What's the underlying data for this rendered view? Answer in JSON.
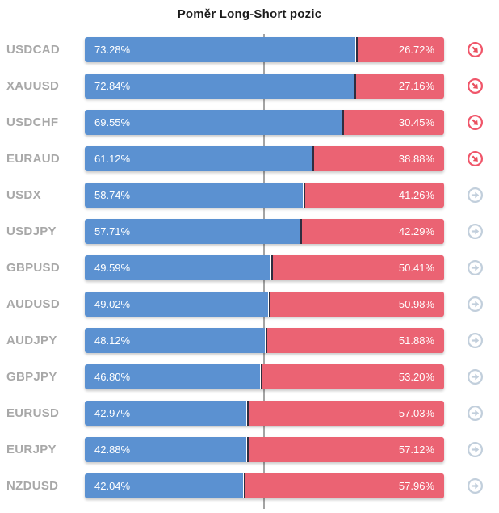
{
  "title": "Poměr Long-Short pozic",
  "colors": {
    "long_bar": "#5b91d1",
    "short_bar": "#eb6373",
    "junction_divider": "#2e2e40",
    "pair_label": "#a8a8a8",
    "title_text": "#1b1b1b",
    "center_line": "#a4a4a4",
    "sell_icon": "#f0566a",
    "neutral_icon": "#c2cfdc",
    "bar_text": "#ffffff"
  },
  "chart_data": {
    "type": "bar",
    "orientation": "horizontal",
    "stacked": true,
    "title": "Poměr Long-Short pozic",
    "xlim": [
      0,
      100
    ],
    "center_marker": 50,
    "legend": "none",
    "categories": [
      "USDCAD",
      "XAUUSD",
      "USDCHF",
      "EURAUD",
      "USDX",
      "USDJPY",
      "GBPUSD",
      "AUDUSD",
      "AUDJPY",
      "GBPJPY",
      "EURUSD",
      "EURJPY",
      "NZDUSD"
    ],
    "series": [
      {
        "name": "Long",
        "color": "#5b91d1",
        "values": [
          73.28,
          72.84,
          69.55,
          61.12,
          58.74,
          57.71,
          49.59,
          49.02,
          48.12,
          46.8,
          42.97,
          42.88,
          42.04
        ]
      },
      {
        "name": "Short",
        "color": "#eb6373",
        "values": [
          26.72,
          27.16,
          30.45,
          38.88,
          41.26,
          42.29,
          50.41,
          50.98,
          51.88,
          53.2,
          57.03,
          57.12,
          57.96
        ]
      }
    ],
    "rows": [
      {
        "pair": "USDCAD",
        "long": 73.28,
        "short": 26.72,
        "long_label": "73.28%",
        "short_label": "26.72%",
        "signal": "sell"
      },
      {
        "pair": "XAUUSD",
        "long": 72.84,
        "short": 27.16,
        "long_label": "72.84%",
        "short_label": "27.16%",
        "signal": "sell"
      },
      {
        "pair": "USDCHF",
        "long": 69.55,
        "short": 30.45,
        "long_label": "69.55%",
        "short_label": "30.45%",
        "signal": "sell"
      },
      {
        "pair": "EURAUD",
        "long": 61.12,
        "short": 38.88,
        "long_label": "61.12%",
        "short_label": "38.88%",
        "signal": "sell"
      },
      {
        "pair": "USDX",
        "long": 58.74,
        "short": 41.26,
        "long_label": "58.74%",
        "short_label": "41.26%",
        "signal": "neutral"
      },
      {
        "pair": "USDJPY",
        "long": 57.71,
        "short": 42.29,
        "long_label": "57.71%",
        "short_label": "42.29%",
        "signal": "neutral"
      },
      {
        "pair": "GBPUSD",
        "long": 49.59,
        "short": 50.41,
        "long_label": "49.59%",
        "short_label": "50.41%",
        "signal": "neutral"
      },
      {
        "pair": "AUDUSD",
        "long": 49.02,
        "short": 50.98,
        "long_label": "49.02%",
        "short_label": "50.98%",
        "signal": "neutral"
      },
      {
        "pair": "AUDJPY",
        "long": 48.12,
        "short": 51.88,
        "long_label": "48.12%",
        "short_label": "51.88%",
        "signal": "neutral"
      },
      {
        "pair": "GBPJPY",
        "long": 46.8,
        "short": 53.2,
        "long_label": "46.80%",
        "short_label": "53.20%",
        "signal": "neutral"
      },
      {
        "pair": "EURUSD",
        "long": 42.97,
        "short": 57.03,
        "long_label": "42.97%",
        "short_label": "57.03%",
        "signal": "neutral"
      },
      {
        "pair": "EURJPY",
        "long": 42.88,
        "short": 57.12,
        "long_label": "42.88%",
        "short_label": "57.12%",
        "signal": "neutral"
      },
      {
        "pair": "NZDUSD",
        "long": 42.04,
        "short": 57.96,
        "long_label": "42.04%",
        "short_label": "57.96%",
        "signal": "neutral"
      }
    ]
  }
}
